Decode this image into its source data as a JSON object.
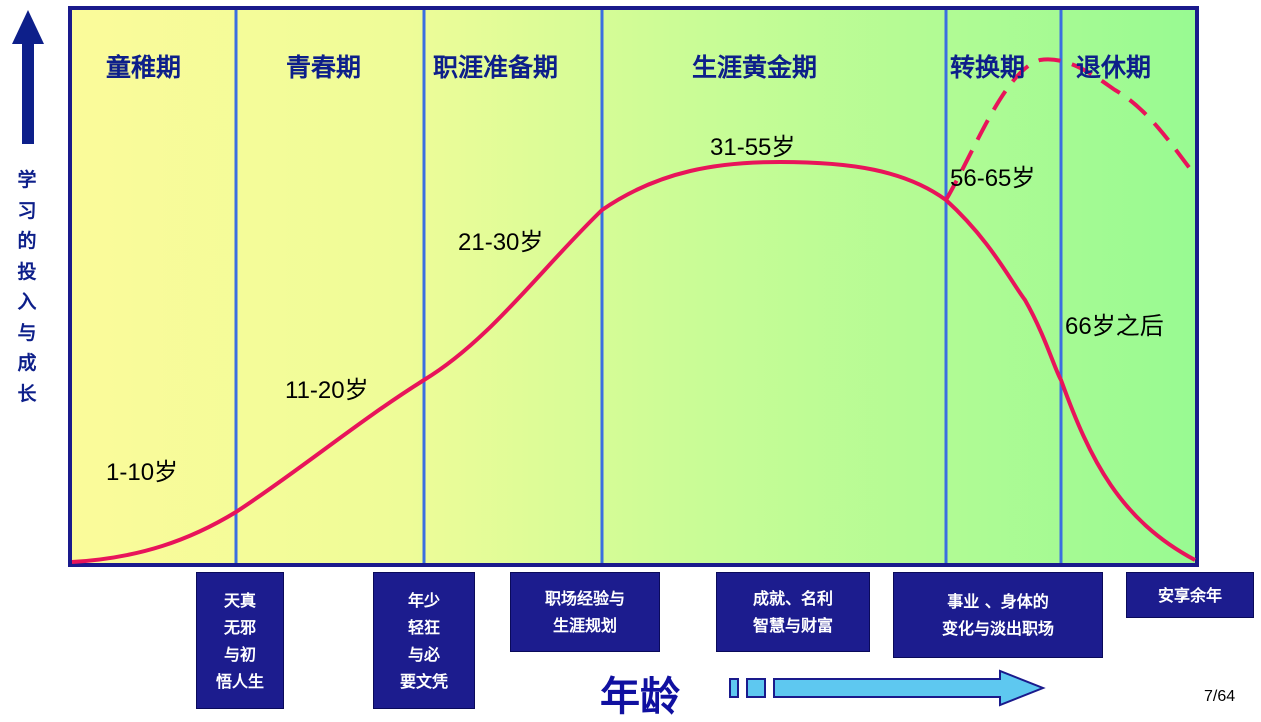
{
  "phases": [
    {
      "title": "童稚期",
      "age": "1-10岁",
      "desc": "天真\n无邪\n与初\n悟人生"
    },
    {
      "title": "青春期",
      "age": "11-20岁",
      "desc": "年少\n轻狂\n与必\n要文凭"
    },
    {
      "title": "职涯准备期",
      "age": "21-30岁",
      "desc": "职场经验与\n生涯规划"
    },
    {
      "title": "生涯黄金期",
      "age": "31-55岁",
      "desc": "成就、名利\n智慧与财富"
    },
    {
      "title": "转换期",
      "age": "56-65岁",
      "desc": "事业 、身体的\n变化与淡出职场"
    },
    {
      "title": "退休期",
      "age": "66岁之后",
      "desc": "安享余年"
    }
  ],
  "y_axis_label": "学习的投入与成长",
  "x_axis_label": "年龄",
  "page_number": "7/64",
  "colors": {
    "frame": "#1a1a8c",
    "divider": "#3a6fe0",
    "curve": "#e8145a",
    "box_fill": "#1c1c8e",
    "title_text": "#0d1f8a",
    "arrow_fill": "#5ec8f0"
  }
}
